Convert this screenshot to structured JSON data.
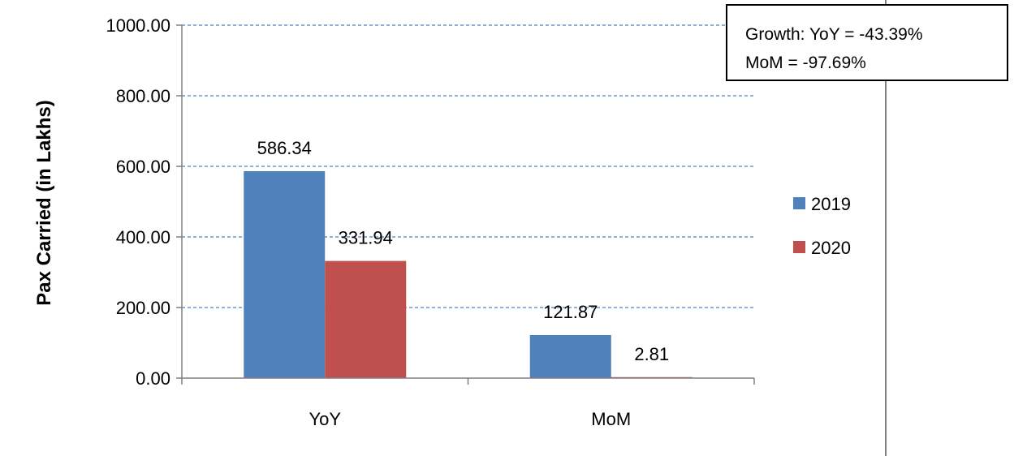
{
  "chart_data": {
    "type": "bar",
    "categories": [
      "YoY",
      "MoM"
    ],
    "series": [
      {
        "name": "2019",
        "values": [
          586.34,
          121.87
        ],
        "color": "#4f81bd"
      },
      {
        "name": "2020",
        "values": [
          331.94,
          2.81
        ],
        "color": "#c0504d"
      }
    ],
    "data_labels": [
      [
        "586.34",
        "121.87"
      ],
      [
        "331.94",
        "2.81"
      ]
    ],
    "ylabel": "Pax Carried (in Lakhs)",
    "xlabel": "",
    "ylim": [
      0,
      1000
    ],
    "yticks": [
      0,
      200,
      400,
      600,
      800,
      1000
    ],
    "ytick_labels": [
      "0.00",
      "200.00",
      "400.00",
      "600.00",
      "800.00",
      "1000.00"
    ],
    "grid": true,
    "legend_position": "right",
    "annotation": {
      "line1": "Growth:  YoY   = -43.39%",
      "line2": "MoM = -97.69%"
    }
  }
}
